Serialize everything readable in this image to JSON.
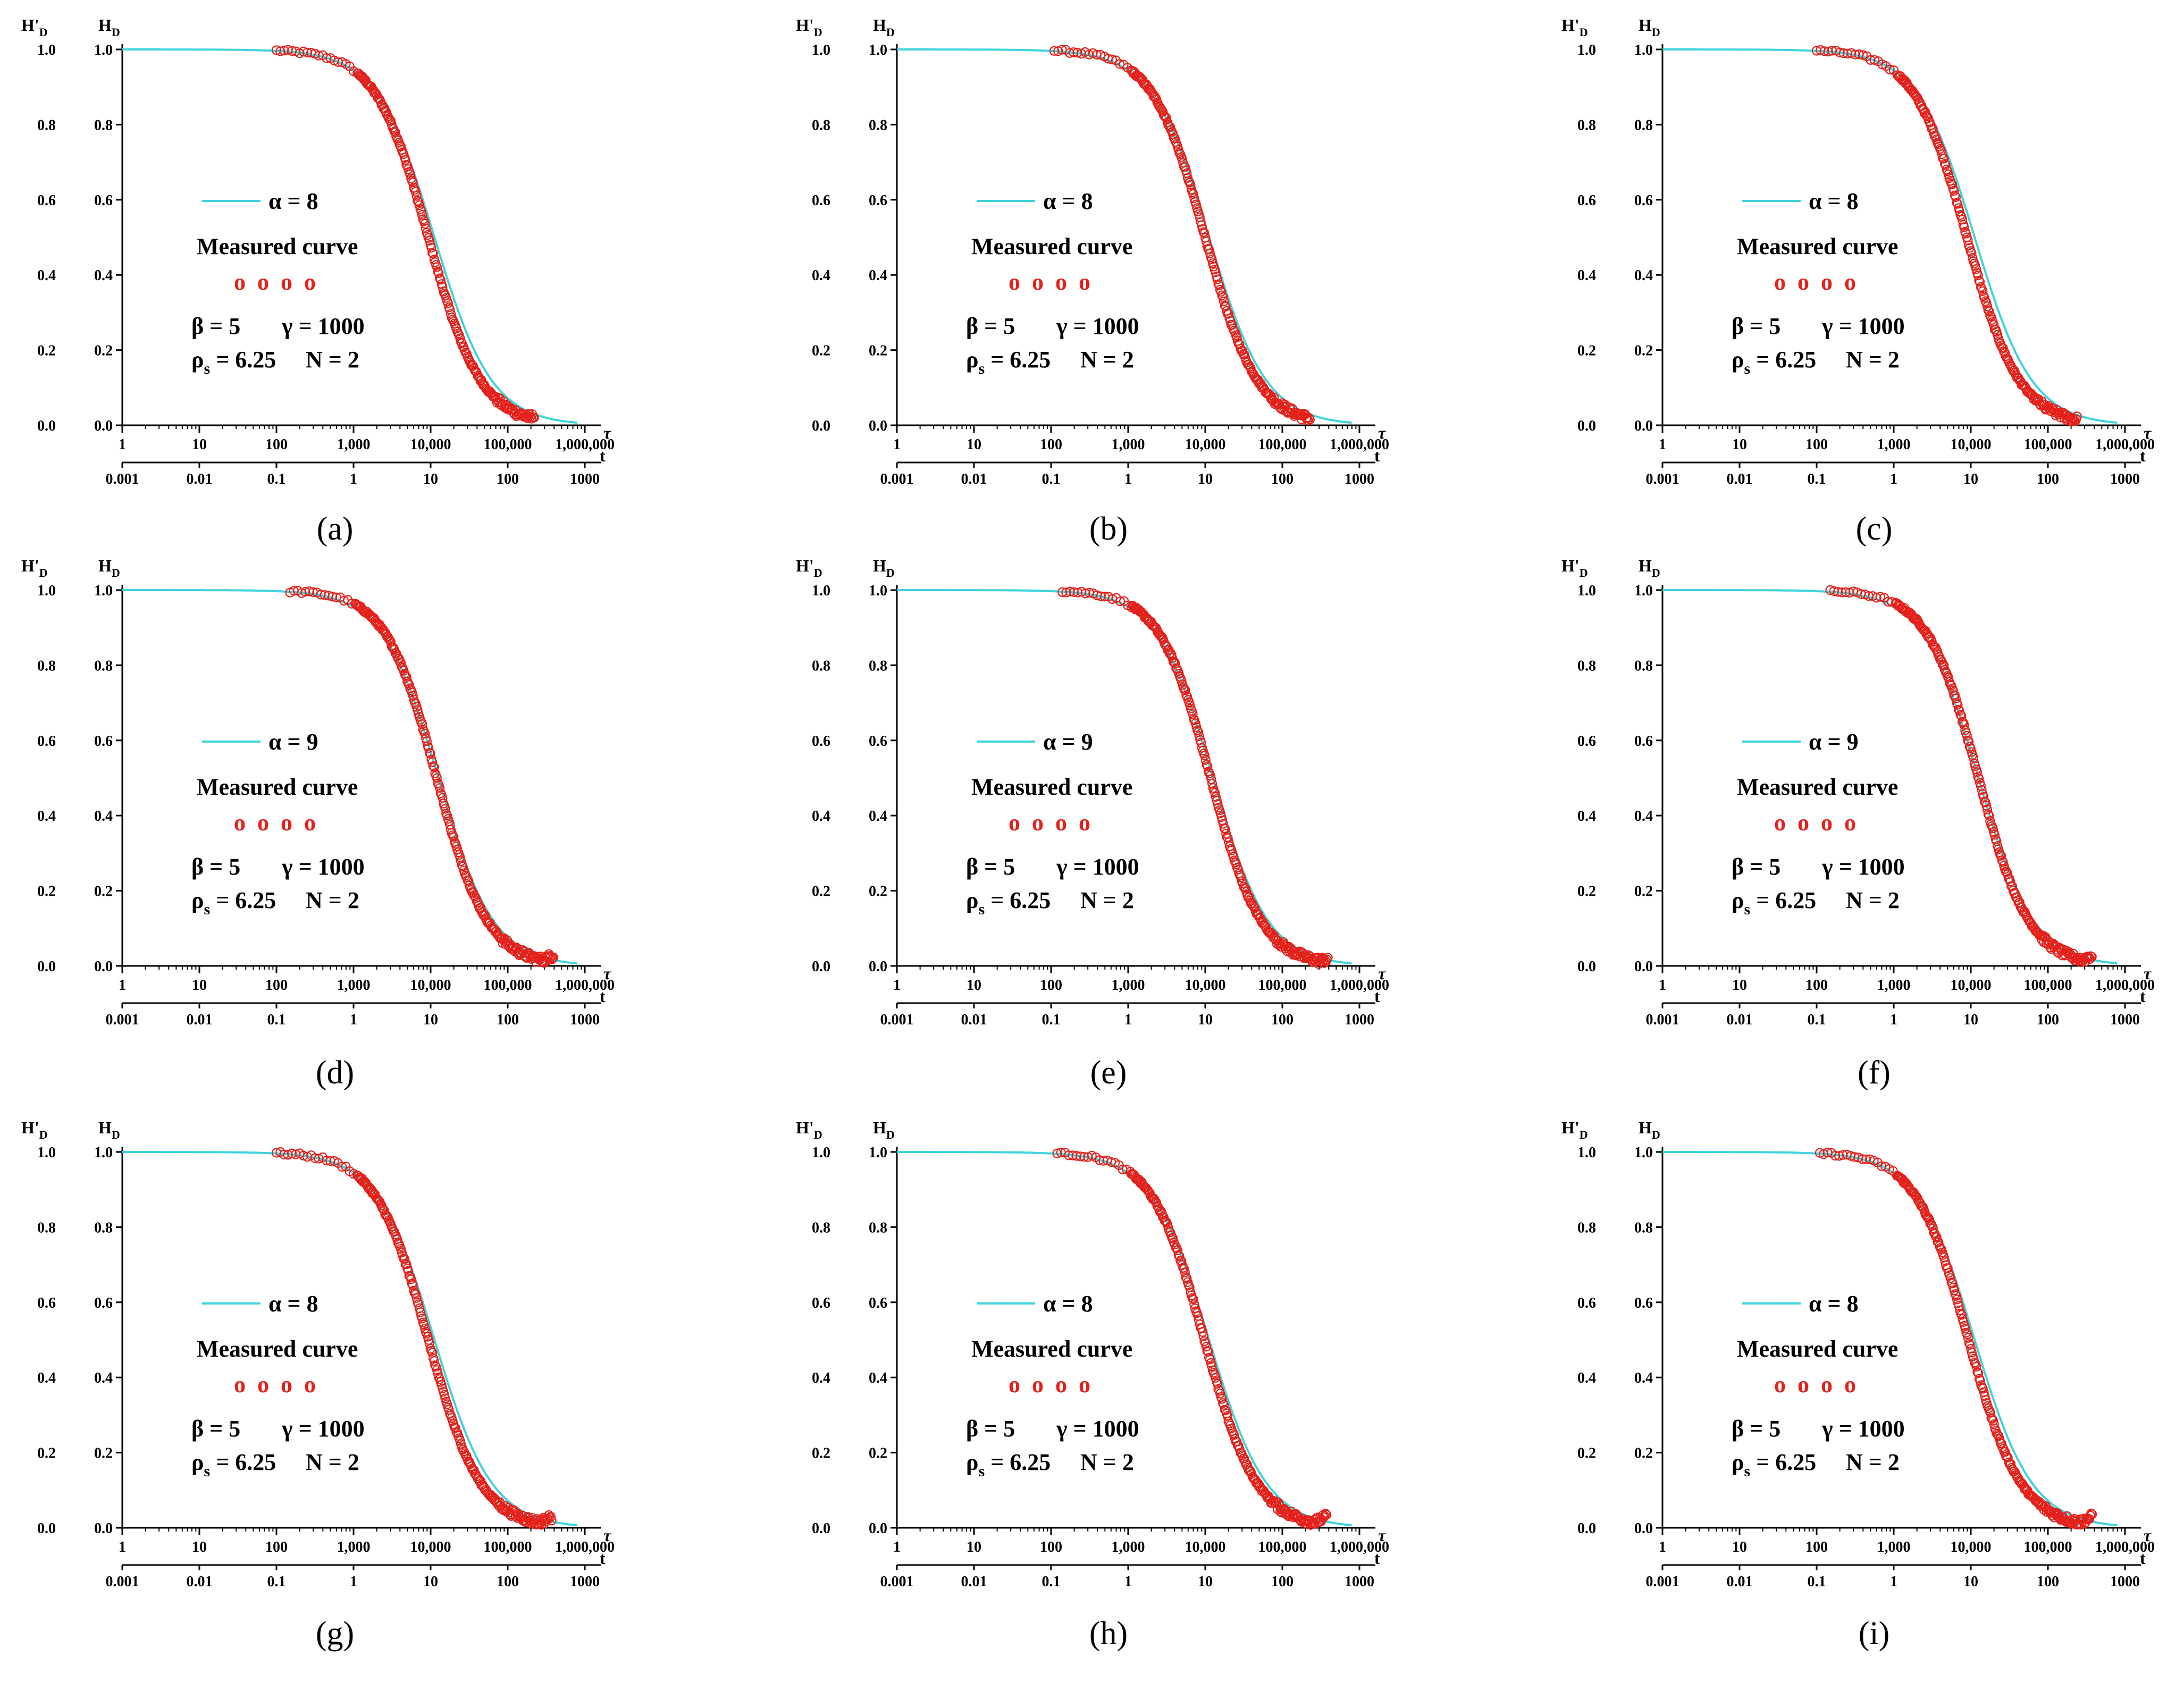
{
  "figure": {
    "colors": {
      "fit_curve": "#3fd3dc",
      "measured": "#e4211b",
      "axis": "#000000"
    },
    "shared": {
      "y_left_label": "H'",
      "y_left_sub": "D",
      "y_right_label": "H",
      "y_right_sub": "D",
      "y_ticks": [
        "0.0",
        "0.2",
        "0.4",
        "0.6",
        "0.8",
        "1.0"
      ],
      "tau_label": "τ",
      "t_label": "t",
      "tau_ticks": [
        "1",
        "10",
        "100",
        "1,000",
        "10,000",
        "100,000",
        "1,000,000"
      ],
      "t_ticks": [
        "0.001",
        "0.01",
        "0.1",
        "1",
        "10",
        "100",
        "1000"
      ],
      "legend_measured": "Measured curve",
      "legend_symbols": "o  o  o  o",
      "legend_beta": "β = 5",
      "legend_gamma": "γ = 1000",
      "legend_rho": "ρ",
      "legend_rho_sub": "s",
      "legend_rho_value": " = 6.25",
      "legend_N": "N = 2"
    }
  },
  "chart_data": [
    {
      "type": "scatter",
      "panel": "a",
      "caption": "(a)",
      "title": "",
      "fit_label": "α = 8",
      "xlabel": "τ / t",
      "ylabel": "H'D / HD",
      "x_scale": "log",
      "xlim_tau": [
        1,
        1000000
      ],
      "xlim_t": [
        0.001,
        1000
      ],
      "ylim": [
        0,
        1
      ],
      "fit_center_log_tau": 4.05,
      "fit_width": 0.62,
      "measured_tau_range": [
        100,
        220000
      ],
      "measured_shift": -0.08,
      "measured_tail_end": 0.03,
      "series": [
        {
          "name": "α = 8",
          "kind": "line"
        },
        {
          "name": "Measured curve",
          "kind": "markers"
        }
      ]
    },
    {
      "type": "scatter",
      "panel": "b",
      "caption": "(b)",
      "title": "",
      "fit_label": "α = 8",
      "xlabel": "τ / t",
      "ylabel": "H'D / HD",
      "x_scale": "log",
      "xlim_tau": [
        1,
        1000000
      ],
      "xlim_t": [
        0.001,
        1000
      ],
      "ylim": [
        0,
        1
      ],
      "fit_center_log_tau": 4.05,
      "fit_width": 0.62,
      "measured_tau_range": [
        110,
        230000
      ],
      "measured_shift": -0.05,
      "measured_tail_end": 0.02,
      "series": [
        {
          "name": "α = 8",
          "kind": "line"
        },
        {
          "name": "Measured curve",
          "kind": "markers"
        }
      ]
    },
    {
      "type": "scatter",
      "panel": "c",
      "caption": "(c)",
      "title": "",
      "fit_label": "α = 8",
      "xlabel": "τ / t",
      "ylabel": "H'D / HD",
      "x_scale": "log",
      "xlim_tau": [
        1,
        1000000
      ],
      "xlim_t": [
        0.001,
        1000
      ],
      "ylim": [
        0,
        1
      ],
      "fit_center_log_tau": 4.05,
      "fit_width": 0.62,
      "measured_tau_range": [
        100,
        240000
      ],
      "measured_shift": -0.1,
      "measured_tail_end": 0.01,
      "series": [
        {
          "name": "α = 8",
          "kind": "line"
        },
        {
          "name": "Measured curve",
          "kind": "markers"
        }
      ]
    },
    {
      "type": "scatter",
      "panel": "d",
      "caption": "(d)",
      "title": "",
      "fit_label": "α = 9",
      "xlabel": "τ / t",
      "ylabel": "H'D / HD",
      "x_scale": "log",
      "xlim_tau": [
        1,
        1000000
      ],
      "xlim_t": [
        0.001,
        1000
      ],
      "ylim": [
        0,
        1
      ],
      "fit_center_log_tau": 4.1,
      "fit_width": 0.6,
      "measured_tau_range": [
        150,
        400000
      ],
      "measured_shift": -0.02,
      "measured_tail_end": 0.03,
      "series": [
        {
          "name": "α = 9",
          "kind": "line"
        },
        {
          "name": "Measured curve",
          "kind": "markers"
        }
      ]
    },
    {
      "type": "scatter",
      "panel": "e",
      "caption": "(e)",
      "title": "",
      "fit_label": "α = 9",
      "xlabel": "τ / t",
      "ylabel": "H'D / HD",
      "x_scale": "log",
      "xlim_tau": [
        1,
        1000000
      ],
      "xlim_t": [
        0.001,
        1000
      ],
      "ylim": [
        0,
        1
      ],
      "fit_center_log_tau": 4.1,
      "fit_width": 0.6,
      "measured_tau_range": [
        140,
        400000
      ],
      "measured_shift": -0.03,
      "measured_tail_end": 0.02,
      "series": [
        {
          "name": "α = 9",
          "kind": "line"
        },
        {
          "name": "Measured curve",
          "kind": "markers"
        }
      ]
    },
    {
      "type": "scatter",
      "panel": "f",
      "caption": "(f)",
      "title": "",
      "fit_label": "α = 9",
      "xlabel": "τ / t",
      "ylabel": "H'D / HD",
      "x_scale": "log",
      "xlim_tau": [
        1,
        1000000
      ],
      "xlim_t": [
        0.001,
        1000
      ],
      "ylim": [
        0,
        1
      ],
      "fit_center_log_tau": 4.1,
      "fit_width": 0.6,
      "measured_tau_range": [
        150,
        380000
      ],
      "measured_shift": 0.0,
      "measured_tail_end": 0.03,
      "series": [
        {
          "name": "α = 9",
          "kind": "line"
        },
        {
          "name": "Measured curve",
          "kind": "markers"
        }
      ]
    },
    {
      "type": "scatter",
      "panel": "g",
      "caption": "(g)",
      "title": "",
      "fit_label": "α = 8",
      "xlabel": "τ / t",
      "ylabel": "H'D / HD",
      "x_scale": "log",
      "xlim_tau": [
        1,
        1000000
      ],
      "xlim_t": [
        0.001,
        1000
      ],
      "ylim": [
        0,
        1
      ],
      "fit_center_log_tau": 4.05,
      "fit_width": 0.62,
      "measured_tau_range": [
        100,
        380000
      ],
      "measured_shift": -0.08,
      "measured_tail_end": 0.03,
      "series": [
        {
          "name": "α = 8",
          "kind": "line"
        },
        {
          "name": "Measured curve",
          "kind": "markers"
        }
      ]
    },
    {
      "type": "scatter",
      "panel": "h",
      "caption": "(h)",
      "title": "",
      "fit_label": "α = 8",
      "xlabel": "τ / t",
      "ylabel": "H'D / HD",
      "x_scale": "log",
      "xlim_tau": [
        1,
        1000000
      ],
      "xlim_t": [
        0.001,
        1000
      ],
      "ylim": [
        0,
        1
      ],
      "fit_center_log_tau": 4.05,
      "fit_width": 0.62,
      "measured_tau_range": [
        120,
        380000
      ],
      "measured_shift": -0.06,
      "measured_tail_end": 0.03,
      "series": [
        {
          "name": "α = 8",
          "kind": "line"
        },
        {
          "name": "Measured curve",
          "kind": "markers"
        }
      ]
    },
    {
      "type": "scatter",
      "panel": "i",
      "caption": "(i)",
      "title": "",
      "fit_label": "α = 8",
      "xlabel": "τ / t",
      "ylabel": "H'D / HD",
      "x_scale": "log",
      "xlim_tau": [
        1,
        1000000
      ],
      "xlim_t": [
        0.001,
        1000
      ],
      "ylim": [
        0,
        1
      ],
      "fit_center_log_tau": 4.05,
      "fit_width": 0.62,
      "measured_tau_range": [
        110,
        380000
      ],
      "measured_shift": -0.08,
      "measured_tail_end": 0.03,
      "series": [
        {
          "name": "α = 8",
          "kind": "line"
        },
        {
          "name": "Measured curve",
          "kind": "markers"
        }
      ]
    }
  ]
}
